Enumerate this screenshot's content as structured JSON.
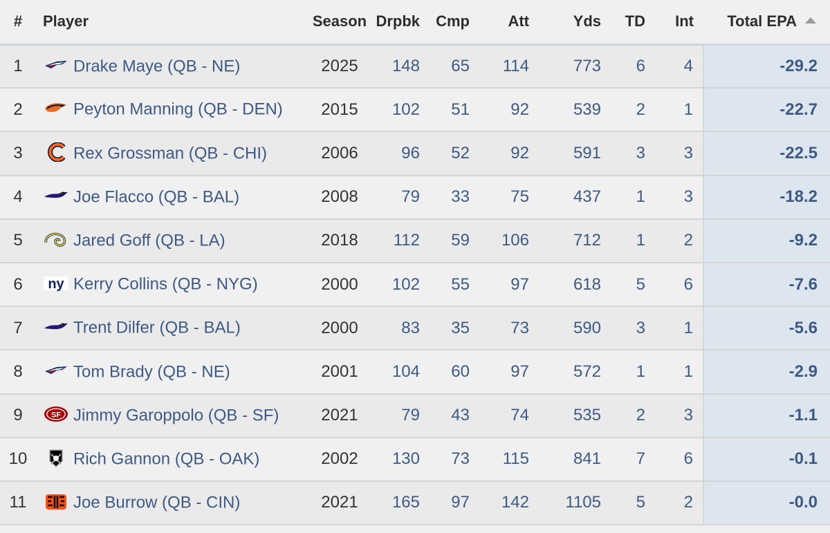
{
  "headers": {
    "rank": "#",
    "player": "Player",
    "season": "Season",
    "drpbk": "Drpbk",
    "cmp": "Cmp",
    "att": "Att",
    "yds": "Yds",
    "td": "TD",
    "int": "Int",
    "epa": "Total EPA"
  },
  "sort": {
    "column": "Total EPA",
    "direction": "ascending",
    "icon": "sort-up-icon"
  },
  "rows": [
    {
      "rank": "1",
      "team": "NE",
      "logo": "patriots-logo-icon",
      "player": "Drake Maye (QB - NE)",
      "season": "2025",
      "drpbk": "148",
      "cmp": "65",
      "att": "114",
      "yds": "773",
      "td": "6",
      "int": "4",
      "epa": "-29.2"
    },
    {
      "rank": "2",
      "team": "DEN",
      "logo": "broncos-logo-icon",
      "player": "Peyton Manning (QB - DEN)",
      "season": "2015",
      "drpbk": "102",
      "cmp": "51",
      "att": "92",
      "yds": "539",
      "td": "2",
      "int": "1",
      "epa": "-22.7"
    },
    {
      "rank": "3",
      "team": "CHI",
      "logo": "bears-logo-icon",
      "player": "Rex Grossman (QB - CHI)",
      "season": "2006",
      "drpbk": "96",
      "cmp": "52",
      "att": "92",
      "yds": "591",
      "td": "3",
      "int": "3",
      "epa": "-22.5"
    },
    {
      "rank": "4",
      "team": "BAL",
      "logo": "ravens-logo-icon",
      "player": "Joe Flacco (QB - BAL)",
      "season": "2008",
      "drpbk": "79",
      "cmp": "33",
      "att": "75",
      "yds": "437",
      "td": "1",
      "int": "3",
      "epa": "-18.2"
    },
    {
      "rank": "5",
      "team": "LA",
      "logo": "rams-logo-icon",
      "player": "Jared Goff (QB - LA)",
      "season": "2018",
      "drpbk": "112",
      "cmp": "59",
      "att": "106",
      "yds": "712",
      "td": "1",
      "int": "2",
      "epa": "-9.2"
    },
    {
      "rank": "6",
      "team": "NYG",
      "logo": "giants-logo-icon",
      "player": "Kerry Collins (QB - NYG)",
      "season": "2000",
      "drpbk": "102",
      "cmp": "55",
      "att": "97",
      "yds": "618",
      "td": "5",
      "int": "6",
      "epa": "-7.6"
    },
    {
      "rank": "7",
      "team": "BAL",
      "logo": "ravens-logo-icon",
      "player": "Trent Dilfer (QB - BAL)",
      "season": "2000",
      "drpbk": "83",
      "cmp": "35",
      "att": "73",
      "yds": "590",
      "td": "3",
      "int": "1",
      "epa": "-5.6"
    },
    {
      "rank": "8",
      "team": "NE",
      "logo": "patriots-logo-icon",
      "player": "Tom Brady (QB - NE)",
      "season": "2001",
      "drpbk": "104",
      "cmp": "60",
      "att": "97",
      "yds": "572",
      "td": "1",
      "int": "1",
      "epa": "-2.9"
    },
    {
      "rank": "9",
      "team": "SF",
      "logo": "49ers-logo-icon",
      "player": "Jimmy Garoppolo (QB - SF)",
      "season": "2021",
      "drpbk": "79",
      "cmp": "43",
      "att": "74",
      "yds": "535",
      "td": "2",
      "int": "3",
      "epa": "-1.1"
    },
    {
      "rank": "10",
      "team": "OAK",
      "logo": "raiders-logo-icon",
      "player": "Rich Gannon (QB - OAK)",
      "season": "2002",
      "drpbk": "130",
      "cmp": "73",
      "att": "115",
      "yds": "841",
      "td": "7",
      "int": "6",
      "epa": "-0.1"
    },
    {
      "rank": "11",
      "team": "CIN",
      "logo": "bengals-logo-icon",
      "player": "Joe Burrow (QB - CIN)",
      "season": "2021",
      "drpbk": "165",
      "cmp": "97",
      "att": "142",
      "yds": "1105",
      "td": "5",
      "int": "2",
      "epa": "-0.0"
    }
  ],
  "colors": {
    "link": "#3c5a84",
    "header_text": "#2d2d2d",
    "row_odd": "#eaeaea",
    "row_even": "#f0f0f0",
    "highlight_column": "#dde5ee"
  }
}
